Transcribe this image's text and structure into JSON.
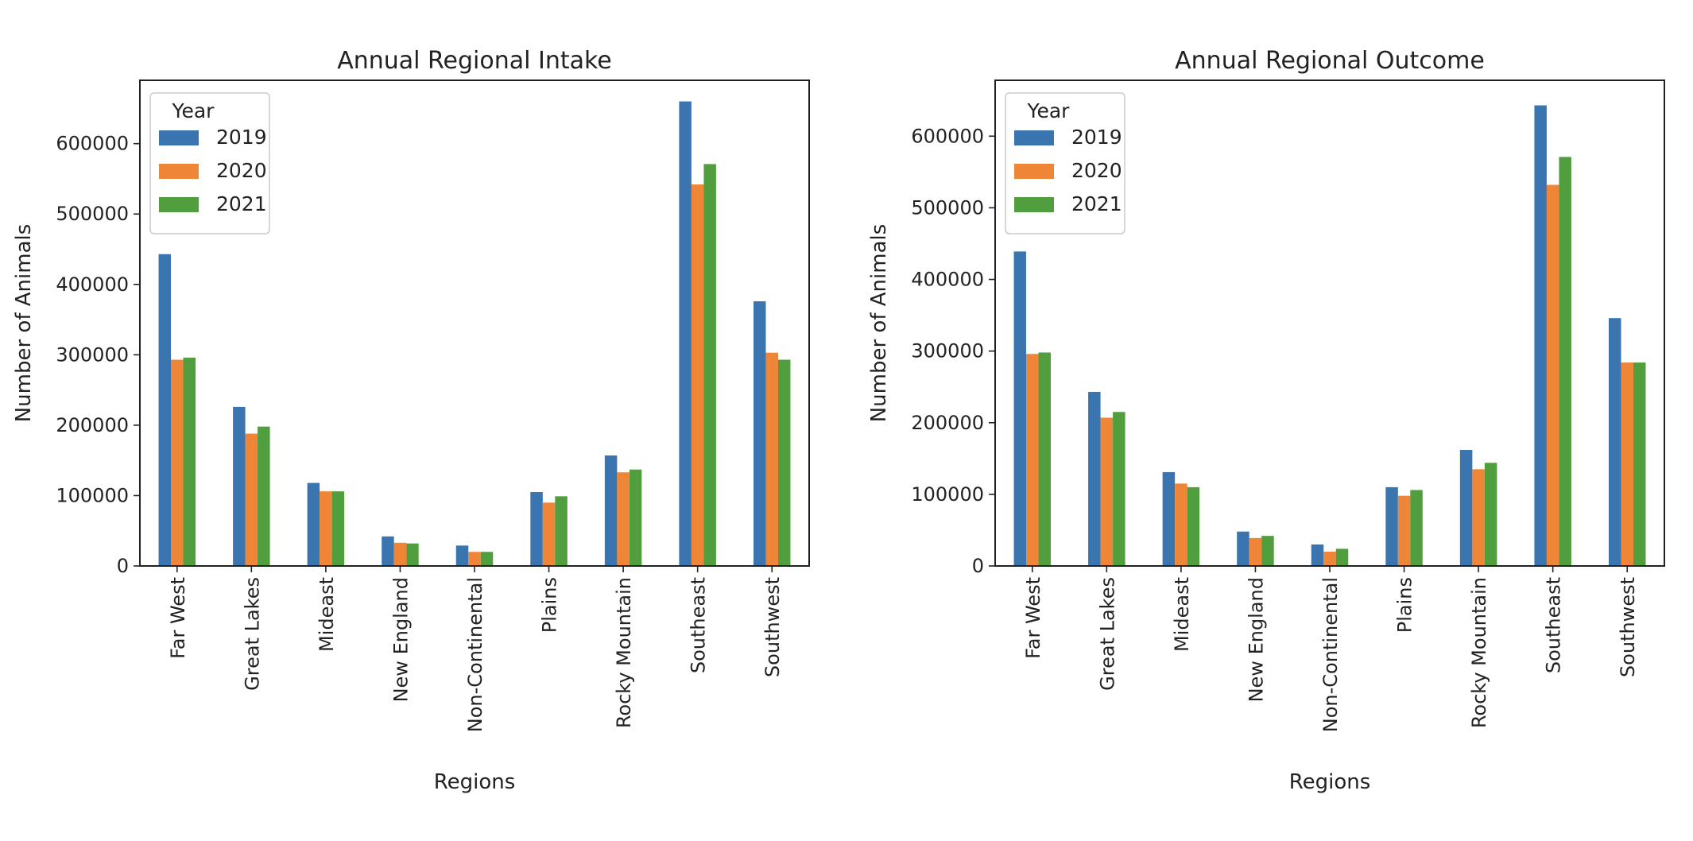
{
  "chart_data": [
    {
      "type": "bar",
      "title": "Annual Regional Intake",
      "xlabel": "Regions",
      "ylabel": "Number of Animals",
      "ylim": [
        0,
        690000
      ],
      "yticks": [
        0,
        100000,
        200000,
        300000,
        400000,
        500000,
        600000
      ],
      "grid": false,
      "legend": {
        "title": "Year",
        "position": "top-left"
      },
      "categories": [
        "Far West",
        "Great Lakes",
        "Mideast",
        "New England",
        "Non-Continental",
        "Plains",
        "Rocky Mountain",
        "Southeast",
        "Southwest"
      ],
      "series": [
        {
          "name": "2019",
          "color": "#3a75b0",
          "values": [
            443000,
            226000,
            118000,
            42000,
            29000,
            105000,
            157000,
            660000,
            376000
          ]
        },
        {
          "name": "2020",
          "color": "#ef8536",
          "values": [
            293000,
            188000,
            106000,
            33000,
            20000,
            90000,
            133000,
            542000,
            303000
          ]
        },
        {
          "name": "2021",
          "color": "#519e3e",
          "values": [
            296000,
            198000,
            106000,
            32000,
            20000,
            99000,
            137000,
            571000,
            293000
          ]
        }
      ]
    },
    {
      "type": "bar",
      "title": "Annual Regional Outcome",
      "xlabel": "Regions",
      "ylabel": "Number of Animals",
      "ylim": [
        0,
        678000
      ],
      "yticks": [
        0,
        100000,
        200000,
        300000,
        400000,
        500000,
        600000
      ],
      "grid": false,
      "legend": {
        "title": "Year",
        "position": "top-left"
      },
      "categories": [
        "Far West",
        "Great Lakes",
        "Mideast",
        "New England",
        "Non-Continental",
        "Plains",
        "Rocky Mountain",
        "Southeast",
        "Southwest"
      ],
      "series": [
        {
          "name": "2019",
          "color": "#3a75b0",
          "values": [
            439000,
            243000,
            131000,
            48000,
            30000,
            110000,
            162000,
            643000,
            346000
          ]
        },
        {
          "name": "2020",
          "color": "#ef8536",
          "values": [
            296000,
            207000,
            115000,
            39000,
            20000,
            98000,
            135000,
            532000,
            284000
          ]
        },
        {
          "name": "2021",
          "color": "#519e3e",
          "values": [
            298000,
            215000,
            110000,
            42000,
            24000,
            106000,
            144000,
            571000,
            284000
          ]
        }
      ]
    }
  ]
}
